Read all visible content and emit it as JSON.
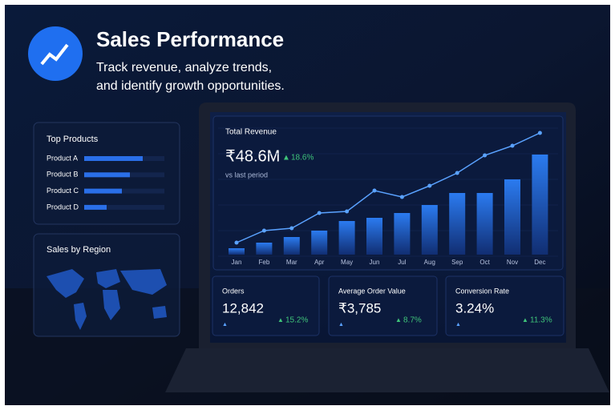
{
  "header": {
    "title": "Sales Performance",
    "subtitle_lines": [
      "Track revenue, analyze trends,",
      "and identify growth opportunities."
    ]
  },
  "top_products": {
    "title": "Top Products",
    "xlim": [
      0,
      100
    ],
    "color": "#2a6fe8",
    "items": [
      {
        "label": "Product A",
        "value": 73
      },
      {
        "label": "Product B",
        "value": 57
      },
      {
        "label": "Product C",
        "value": 47
      },
      {
        "label": "Product D",
        "value": 28
      }
    ]
  },
  "region": {
    "title": "Sales by Region"
  },
  "chart_data": {
    "type": "bar",
    "title": "Total Revenue",
    "headline": "₹48.6M",
    "change": "18.6%",
    "note": "vs last period",
    "categories": [
      "Jan",
      "Feb",
      "Mar",
      "Apr",
      "May",
      "Jun",
      "Jul",
      "Aug",
      "Sep",
      "Oct",
      "Nov",
      "Dec"
    ],
    "ylim": [
      0,
      160
    ],
    "series": [
      {
        "type": "bar",
        "color": "#1f5fd6",
        "values": [
          8,
          15,
          22,
          30,
          42,
          46,
          52,
          62,
          77,
          77,
          94,
          125
        ]
      },
      {
        "type": "line",
        "color": "#5aa2ff",
        "values": [
          15,
          30,
          33,
          52,
          54,
          80,
          72,
          86,
          102,
          124,
          136,
          152
        ]
      }
    ]
  },
  "kpis": [
    {
      "label": "Orders",
      "value": "12,842",
      "change": "15.2%"
    },
    {
      "label": "Average Order Value",
      "value": "₹3,785",
      "change": "8.7%"
    },
    {
      "label": "Conversion Rate",
      "value": "3.24%",
      "change": "11.3%"
    }
  ]
}
